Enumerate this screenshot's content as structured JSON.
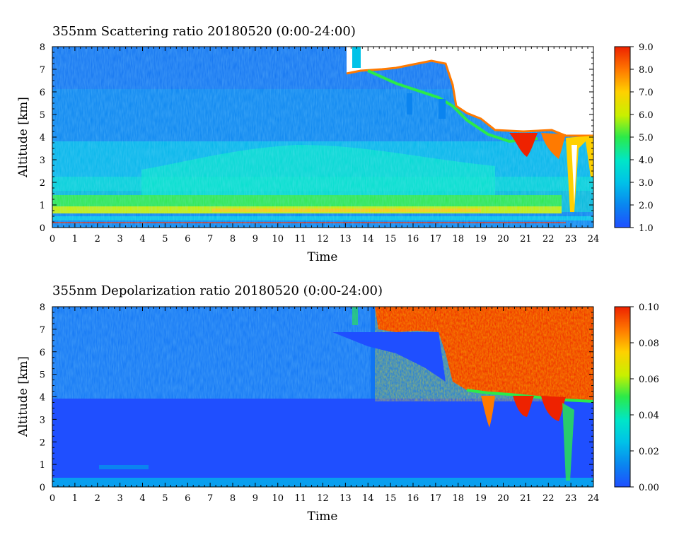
{
  "chart_data": [
    {
      "type": "heatmap",
      "title": "355nm Scattering ratio  20180520 (0:00-24:00)",
      "xlabel": "Time",
      "ylabel": "Altitude [km]",
      "xlim": [
        0,
        24
      ],
      "ylim": [
        0,
        8
      ],
      "xticks": [
        "0",
        "1",
        "2",
        "3",
        "4",
        "5",
        "6",
        "7",
        "8",
        "9",
        "10",
        "11",
        "12",
        "13",
        "14",
        "15",
        "16",
        "17",
        "18",
        "19",
        "20",
        "21",
        "22",
        "23",
        "24"
      ],
      "yticks": [
        "0",
        "1",
        "2",
        "3",
        "4",
        "5",
        "6",
        "7",
        "8"
      ],
      "colorbar": {
        "range": [
          1.0,
          9.0
        ],
        "ticks": [
          "1.0",
          "2.0",
          "3.0",
          "4.0",
          "5.0",
          "6.0",
          "7.0",
          "8.0",
          "9.0"
        ],
        "colormap": "blue-cyan-green-yellow-red"
      },
      "features": {
        "cloud_top_km": [
          {
            "time": 13.0,
            "alt": 6.7
          },
          {
            "time": 15.0,
            "alt": 6.6
          },
          {
            "time": 16.0,
            "alt": 7.0
          },
          {
            "time": 17.0,
            "alt": 7.3
          },
          {
            "time": 18.0,
            "alt": 5.0
          },
          {
            "time": 19.0,
            "alt": 4.3
          },
          {
            "time": 21.0,
            "alt": 4.2
          },
          {
            "time": 23.0,
            "alt": 4.0
          },
          {
            "time": 24.0,
            "alt": 3.9
          }
        ],
        "boundary_layer_top_km": 0.8
      }
    },
    {
      "type": "heatmap",
      "title": "355nm Depolarization ratio  20180520 (0:00-24:00)",
      "xlabel": "Time",
      "ylabel": "Altitude [km]",
      "xlim": [
        0,
        24
      ],
      "ylim": [
        0,
        8
      ],
      "xticks": [
        "0",
        "1",
        "2",
        "3",
        "4",
        "5",
        "6",
        "7",
        "8",
        "9",
        "10",
        "11",
        "12",
        "13",
        "14",
        "15",
        "16",
        "17",
        "18",
        "19",
        "20",
        "21",
        "22",
        "23",
        "24"
      ],
      "yticks": [
        "0",
        "1",
        "2",
        "3",
        "4",
        "5",
        "6",
        "7",
        "8"
      ],
      "colorbar": {
        "range": [
          0.0,
          0.1
        ],
        "ticks": [
          "0.00",
          "0.02",
          "0.04",
          "0.06",
          "0.08",
          "0.10"
        ],
        "colormap": "blue-cyan-green-yellow-red"
      },
      "features": {
        "high_depol_region": {
          "time_start": 14.5,
          "time_end": 24.0,
          "alt_bottom": 4.2,
          "alt_top": 8.0
        }
      }
    }
  ],
  "colors": {
    "c0": "#1f4fff",
    "c1": "#0a84f0",
    "c2": "#00c2e8",
    "c3": "#00e6c8",
    "c4": "#2bea4a",
    "c5": "#c8f000",
    "c6": "#ffd000",
    "c7": "#ff7a00",
    "c8": "#ee2200"
  }
}
